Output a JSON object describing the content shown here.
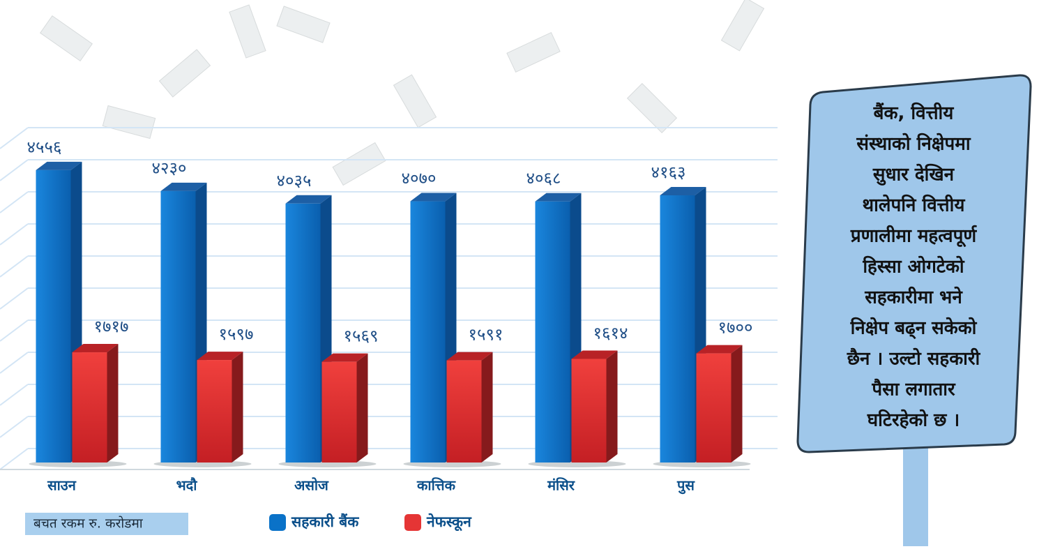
{
  "chart_data": {
    "type": "bar",
    "note": "बचत रकम रु. करोडमा",
    "categories": [
      "साउन",
      "भदौ",
      "असोज",
      "कात्तिक",
      "मंसिर",
      "पुस"
    ],
    "series": [
      {
        "name": "सहकारी बैंक",
        "color": "#0a72c8",
        "values": [
          4556,
          4230,
          4035,
          4070,
          4068,
          4163
        ],
        "value_labels": [
          "४५५६",
          "४२३०",
          "४०३५",
          "४०७०",
          "४०६८",
          "४१६३"
        ]
      },
      {
        "name": "नेफस्कून",
        "color": "#e53535",
        "values": [
          1717,
          1597,
          1569,
          1591,
          1614,
          1700
        ],
        "value_labels": [
          "१७१७",
          "१५९७",
          "१५६९",
          "१५९१",
          "१६१४",
          "१७००"
        ]
      }
    ],
    "ylim": [
      0,
      5000
    ],
    "yticks": [
      0,
      500,
      1000,
      1500,
      2000,
      2500,
      3000,
      3500,
      4000,
      4500,
      5000
    ],
    "grid": true
  },
  "callout": {
    "lines": [
      "बैंक, वित्तीय",
      "संस्थाको निक्षेपमा",
      "सुधार देखिन",
      "थालेपनि वित्तीय",
      "प्रणालीमा महत्वपूर्ण",
      "हिस्सा ओगटेको",
      "सहकारीमा भने",
      "निक्षेप बढ्न सकेको",
      "छैन । उल्टो सहकारी",
      "पैसा लगातार",
      "घटिरहेको छ ।"
    ]
  }
}
